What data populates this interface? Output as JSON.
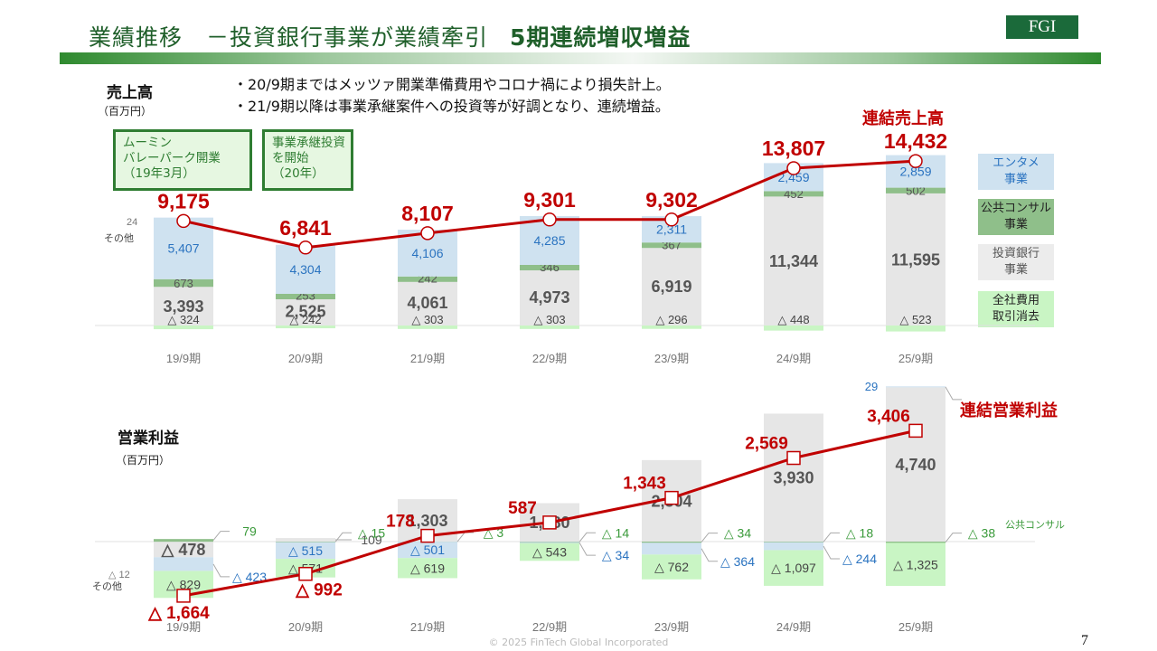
{
  "header": {
    "title": "業績推移　－投資銀行事業が業績牽引",
    "title_bold": "5期連続増収増益",
    "logo": "FGI"
  },
  "bullets": [
    "・20/9期まではメッツァ開業準備費用やコロナ禍により損失計上。",
    "・21/9期以降は事業承継案件への投資等が好調となり、連続増益。"
  ],
  "notes": [
    "ムーミン\nバレーパーク開業\n（19年3月）",
    "事業承継投資\nを開始\n（20年）"
  ],
  "legend": [
    {
      "label": "エンタメ\n事業",
      "color": "#cfe2f0",
      "text_color": "#2a73c0"
    },
    {
      "label": "公共コンサル\n事業",
      "color": "#8fbf8a",
      "text_color": "#222222"
    },
    {
      "label": "投資銀行\n事業",
      "color": "#ececec",
      "text_color": "#555555"
    },
    {
      "label": "全社費用\n取引消去",
      "color": "#c9f5c4",
      "text_color": "#222222"
    }
  ],
  "colors": {
    "entame": "#cfe2f0",
    "consult": "#8fbf8a",
    "invest": "#e6e6e6",
    "corp": "#c9f5c4",
    "line": "#c00000"
  },
  "footer": {
    "copyright": "© 2025 FinTech Global Incorporated",
    "page": "7"
  },
  "chart_data": [
    {
      "type": "bar",
      "stacked": true,
      "title": "売上高",
      "unit": "（百万円）",
      "categories": [
        "19/9期",
        "20/9期",
        "21/9期",
        "22/9期",
        "23/9期",
        "24/9期",
        "25/9期"
      ],
      "series": [
        {
          "name": "投資銀行事業",
          "values": [
            3393,
            2525,
            4061,
            4973,
            6919,
            11344,
            11595
          ]
        },
        {
          "name": "公共コンサル事業",
          "values": [
            673,
            253,
            242,
            346,
            367,
            452,
            502
          ]
        },
        {
          "name": "エンタメ事業",
          "values": [
            5407,
            4304,
            4106,
            4285,
            2311,
            2459,
            2859
          ]
        },
        {
          "name": "全社費用取引消去",
          "values": [
            -324,
            -242,
            -303,
            -303,
            -296,
            -448,
            -523
          ]
        }
      ],
      "other": {
        "label": "その他",
        "value": "24"
      },
      "line": {
        "name": "連結売上高",
        "values": [
          9175,
          6841,
          8107,
          9301,
          9302,
          13807,
          14432
        ]
      }
    },
    {
      "type": "bar",
      "stacked": true,
      "title": "営業利益",
      "unit": "（百万円）",
      "categories": [
        "19/9期",
        "20/9期",
        "21/9期",
        "22/9期",
        "23/9期",
        "24/9期",
        "25/9期"
      ],
      "series": [
        {
          "name": "投資銀行事業",
          "values": [
            -478,
            109,
            1303,
            1180,
            2504,
            3930,
            4740
          ]
        },
        {
          "name": "公共コンサル事業",
          "values": [
            79,
            -15,
            -3,
            -14,
            -34,
            -18,
            -38
          ]
        },
        {
          "name": "エンタメ事業",
          "values": [
            -423,
            -515,
            -501,
            -34,
            -364,
            -244,
            29
          ]
        },
        {
          "name": "全社費用取引消去",
          "values": [
            -829,
            -571,
            -619,
            -543,
            -762,
            -1097,
            -1325
          ]
        }
      ],
      "other": {
        "label": "その他",
        "value": "△ 12"
      },
      "consult_callout": "公共コンサル",
      "line": {
        "name": "連結営業利益",
        "values": [
          -1664,
          -992,
          178,
          587,
          1343,
          2569,
          3406
        ]
      }
    }
  ]
}
